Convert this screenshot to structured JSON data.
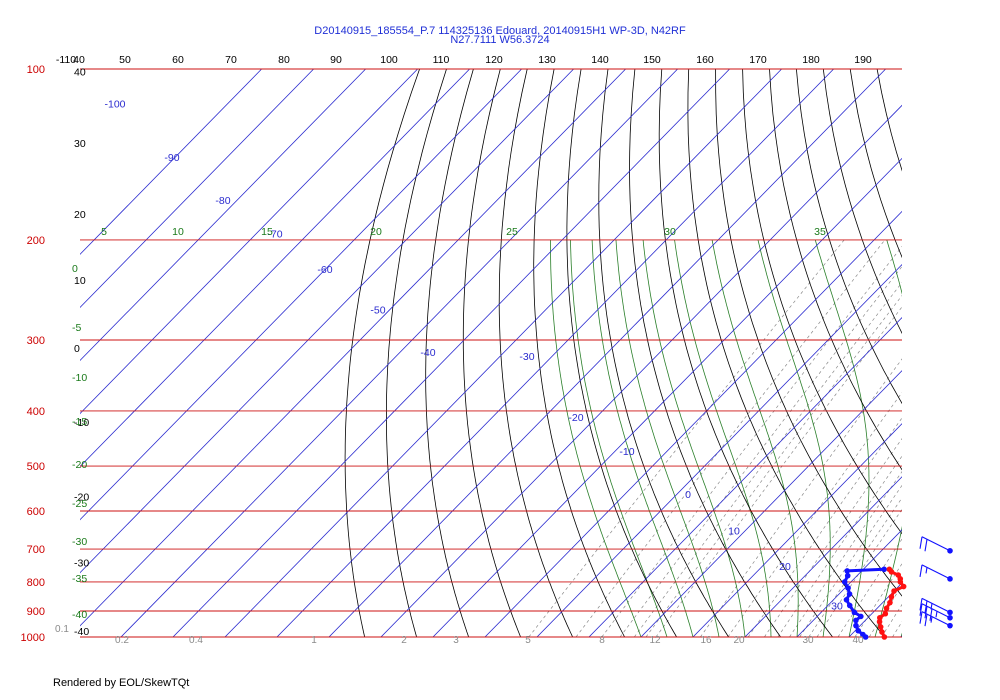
{
  "chart_data": {
    "type": "skew-t",
    "title_line1": "D20140915_185554_P.7 114325136 Edouard, 20140915H1 WP-3D, N42RF",
    "title_line2": "N27.7111 W56.3724",
    "footer": "Rendered by EOL/SkewTQt",
    "pressure_axis": [
      {
        "p": 100,
        "label": "100"
      },
      {
        "p": 200,
        "label": "200"
      },
      {
        "p": 300,
        "label": "300"
      },
      {
        "p": 400,
        "label": "400"
      },
      {
        "p": 500,
        "label": "500"
      },
      {
        "p": 600,
        "label": "600"
      },
      {
        "p": 700,
        "label": "700"
      },
      {
        "p": 800,
        "label": "800"
      },
      {
        "p": 900,
        "label": "900"
      },
      {
        "p": 1000,
        "label": "1000"
      }
    ],
    "top_scale_labels": [
      "-110",
      "40",
      "50",
      "60",
      "70",
      "80",
      "90",
      "100",
      "110",
      "120",
      "130",
      "140",
      "150",
      "160",
      "170",
      "180",
      "190"
    ],
    "left_temperature_labels": [
      {
        "label": "40",
        "p": 101
      },
      {
        "label": "30",
        "p": 135
      },
      {
        "label": "20",
        "p": 180
      },
      {
        "label": "10",
        "p": 235
      },
      {
        "label": "0",
        "p": 310
      },
      {
        "label": "-10",
        "p": 418
      },
      {
        "label": "-20",
        "p": 566
      },
      {
        "label": "-30",
        "p": 740
      },
      {
        "label": "-40",
        "p": 975
      }
    ],
    "isotherm_labels": [
      {
        "label": "-100",
        "p": 115
      },
      {
        "label": "-90",
        "p": 143
      },
      {
        "label": "-80",
        "p": 170
      },
      {
        "label": "-70",
        "p": 195
      },
      {
        "label": "-60",
        "p": 225
      },
      {
        "label": "-50",
        "p": 265
      },
      {
        "label": "-40",
        "p": 315
      },
      {
        "label": "-30",
        "p": 320
      },
      {
        "label": "-20",
        "p": 410
      },
      {
        "label": "-10",
        "p": 470
      },
      {
        "label": "0",
        "p": 560
      },
      {
        "label": "10",
        "p": 650
      },
      {
        "label": "20",
        "p": 750
      },
      {
        "label": "30",
        "p": 880
      }
    ],
    "mixing_ratio_top_labels": [
      "5",
      "10",
      "15",
      "20",
      "25",
      "30",
      "35"
    ],
    "mixing_ratio_left_labels": [
      "0",
      "-5",
      "-10",
      "-15",
      "-20",
      "-25",
      "-30",
      "-35",
      "-40"
    ],
    "bottom_labels": [
      "0.1",
      "0.2",
      "0.4",
      "1",
      "2",
      "3",
      "5",
      "8",
      "12",
      "16",
      "20",
      "30",
      "40"
    ],
    "temperature_profile": [
      {
        "p": 1000,
        "t": 26.8
      },
      {
        "p": 980,
        "t": 25.4
      },
      {
        "p": 960,
        "t": 24.2
      },
      {
        "p": 940,
        "t": 23.0
      },
      {
        "p": 925,
        "t": 22.3
      },
      {
        "p": 910,
        "t": 22.6
      },
      {
        "p": 890,
        "t": 21.8
      },
      {
        "p": 870,
        "t": 21.4
      },
      {
        "p": 850,
        "t": 20.6
      },
      {
        "p": 830,
        "t": 20.0
      },
      {
        "p": 815,
        "t": 21.0
      },
      {
        "p": 800,
        "t": 19.5
      },
      {
        "p": 790,
        "t": 18.9
      },
      {
        "p": 778,
        "t": 17.8
      },
      {
        "p": 768,
        "t": 15.9
      },
      {
        "p": 760,
        "t": 15.0
      }
    ],
    "dewpoint_profile": [
      {
        "p": 1000,
        "t": 23.2
      },
      {
        "p": 990,
        "t": 22.2
      },
      {
        "p": 975,
        "t": 20.6
      },
      {
        "p": 955,
        "t": 19.2
      },
      {
        "p": 935,
        "t": 18.2
      },
      {
        "p": 920,
        "t": 18.4
      },
      {
        "p": 905,
        "t": 16.4
      },
      {
        "p": 880,
        "t": 14.2
      },
      {
        "p": 860,
        "t": 12.5
      },
      {
        "p": 840,
        "t": 12.0
      },
      {
        "p": 820,
        "t": 10.6
      },
      {
        "p": 800,
        "t": 8.8
      },
      {
        "p": 780,
        "t": 8.2
      },
      {
        "p": 765,
        "t": 7.2
      },
      {
        "p": 760,
        "t": 14.0
      }
    ],
    "wind_barbs": [
      {
        "p": 705,
        "speed_kt": 20
      },
      {
        "p": 790,
        "speed_kt": 15
      },
      {
        "p": 905,
        "speed_kt": 25
      },
      {
        "p": 925,
        "speed_kt": 35
      },
      {
        "p": 955,
        "speed_kt": 25
      }
    ],
    "colors": {
      "isobar": "#cc1111",
      "isotherm": "#2b2bcf",
      "dry_adiabat": "#000000",
      "moist_adiabat": "#2a7f2a",
      "mixing_ratio": "#8a8a8a",
      "temperature": "#ff1111",
      "dewpoint": "#1212ff",
      "title": "#1f2fd6"
    }
  }
}
